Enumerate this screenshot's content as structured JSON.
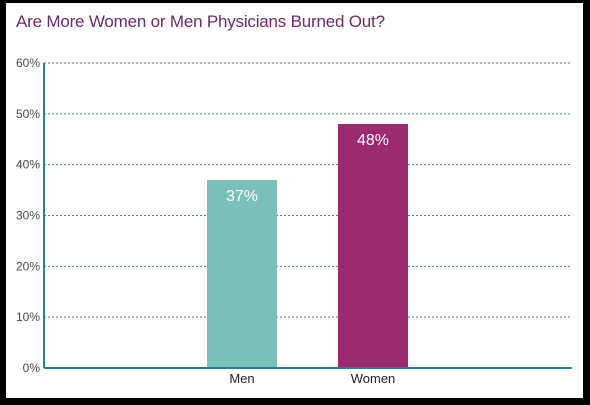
{
  "chart_data": {
    "type": "bar",
    "title": "Are More Women or Men Physicians Burned Out?",
    "categories": [
      "Men",
      "Women"
    ],
    "values": [
      37,
      48
    ],
    "value_labels": [
      "37%",
      "48%"
    ],
    "bar_colors": [
      "#7bbfbb",
      "#9c2a6f"
    ],
    "ylim": [
      0,
      60
    ],
    "yticks": [
      0,
      10,
      20,
      30,
      40,
      50,
      60
    ],
    "ytick_labels": [
      "0%",
      "10%",
      "20%",
      "30%",
      "40%",
      "50%",
      "60%"
    ],
    "xlabel": "",
    "ylabel": "",
    "grid": true,
    "colors": {
      "title": "#6b2c6b",
      "axis": "#2a7f9e",
      "grid": "#4a7f86",
      "background": "#ffffff"
    }
  }
}
